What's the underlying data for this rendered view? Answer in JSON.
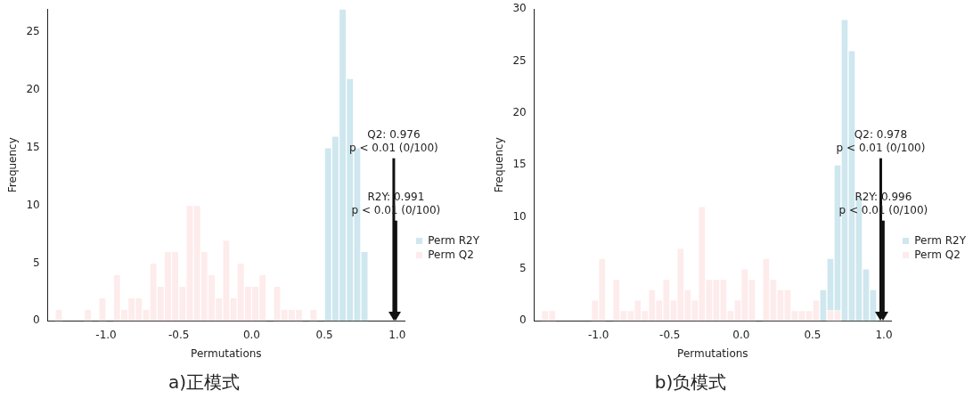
{
  "chart_data": [
    {
      "type": "histogram",
      "title": "a)正模式",
      "xlabel": "Permutations",
      "ylabel": "Frequency",
      "bins": [
        -1.35,
        -1.3,
        -1.25,
        -1.2,
        -1.15,
        -1.1,
        -1.05,
        -1.0,
        -0.95,
        -0.9,
        -0.85,
        -0.8,
        -0.75,
        -0.7,
        -0.65,
        -0.6,
        -0.55,
        -0.5,
        -0.45,
        -0.4,
        -0.35,
        -0.3,
        -0.25,
        -0.2,
        -0.15,
        -0.1,
        -0.05,
        0.0,
        0.05,
        0.1,
        0.15,
        0.2,
        0.25,
        0.3,
        0.35,
        0.4,
        0.45,
        0.5,
        0.55,
        0.6,
        0.65,
        0.7,
        0.75,
        0.8
      ],
      "series": [
        {
          "name": "Perm R2Y",
          "color": "#cfe7ee",
          "values": [
            0,
            0,
            0,
            0,
            0,
            0,
            0,
            0,
            0,
            0,
            0,
            0,
            0,
            0,
            0,
            0,
            0,
            0,
            0,
            0,
            0,
            0,
            0,
            0,
            0,
            0,
            0,
            0,
            0,
            0,
            0,
            0,
            0,
            0,
            0,
            0,
            0,
            15,
            16,
            27,
            21,
            15,
            6
          ]
        },
        {
          "name": "Perm Q2",
          "color": "#fdeceb",
          "values": [
            1,
            0,
            0,
            0,
            1,
            0,
            2,
            0,
            4,
            1,
            2,
            2,
            1,
            5,
            3,
            6,
            6,
            3,
            10,
            10,
            6,
            4,
            2,
            7,
            2,
            5,
            3,
            3,
            4,
            0,
            3,
            1,
            1,
            1,
            0,
            1,
            0,
            0,
            0,
            0,
            0,
            0,
            0
          ]
        }
      ],
      "xlim": [
        -1.4,
        1.05
      ],
      "xticks": [
        {
          "value": -1,
          "label": "-1.0"
        },
        {
          "value": -0.5,
          "label": "-0.5"
        },
        {
          "value": 0,
          "label": "0.0"
        },
        {
          "value": 0.5,
          "label": "0.5"
        },
        {
          "value": 1,
          "label": "1.0"
        }
      ],
      "ylim": [
        0,
        27
      ],
      "yticks": [
        0,
        5,
        10,
        15,
        20,
        25
      ],
      "legend": "right",
      "ref_lines": [
        {
          "axis": "x",
          "value": 0.976,
          "label": "Q2: 0.976\np < 0.01 (0/100)"
        },
        {
          "axis": "x",
          "value": 0.991,
          "label": "R2Y: 0.991\np < 0.01 (0/100)"
        }
      ]
    },
    {
      "type": "histogram",
      "title": "b)负模式",
      "xlabel": "Permutations",
      "ylabel": "Frequency",
      "bins": [
        -1.4,
        -1.35,
        -1.3,
        -1.25,
        -1.2,
        -1.15,
        -1.1,
        -1.05,
        -1.0,
        -0.95,
        -0.9,
        -0.85,
        -0.8,
        -0.75,
        -0.7,
        -0.65,
        -0.6,
        -0.55,
        -0.5,
        -0.45,
        -0.4,
        -0.35,
        -0.3,
        -0.25,
        -0.2,
        -0.15,
        -0.1,
        -0.05,
        0.0,
        0.05,
        0.1,
        0.15,
        0.2,
        0.25,
        0.3,
        0.35,
        0.4,
        0.45,
        0.5,
        0.55,
        0.6,
        0.65,
        0.7,
        0.75,
        0.8,
        0.85,
        0.9,
        0.95
      ],
      "series": [
        {
          "name": "Perm R2Y",
          "color": "#cfe7ee",
          "values": [
            0,
            0,
            0,
            0,
            0,
            0,
            0,
            0,
            0,
            0,
            0,
            0,
            0,
            0,
            0,
            0,
            0,
            0,
            0,
            0,
            0,
            0,
            0,
            0,
            0,
            0,
            0,
            0,
            0,
            0,
            0,
            0,
            0,
            0,
            0,
            0,
            0,
            0,
            0,
            3,
            6,
            15,
            29,
            26,
            12,
            5,
            3
          ]
        },
        {
          "name": "Perm Q2",
          "color": "#fdeceb",
          "values": [
            1,
            1,
            0,
            0,
            0,
            0,
            0,
            2,
            6,
            0,
            4,
            1,
            1,
            2,
            1,
            3,
            2,
            4,
            2,
            7,
            3,
            2,
            11,
            4,
            4,
            4,
            1,
            2,
            5,
            4,
            0,
            6,
            4,
            3,
            3,
            1,
            1,
            1,
            2,
            0,
            1,
            1,
            0,
            0,
            0,
            0,
            0
          ]
        }
      ],
      "xlim": [
        -1.45,
        1.05
      ],
      "xticks": [
        {
          "value": -1,
          "label": "-1.0"
        },
        {
          "value": -0.5,
          "label": "-0.5"
        },
        {
          "value": 0,
          "label": "0.0"
        },
        {
          "value": 0.5,
          "label": "0.5"
        },
        {
          "value": 1,
          "label": "1.0"
        }
      ],
      "ylim": [
        0,
        30
      ],
      "yticks": [
        0,
        5,
        10,
        15,
        20,
        25,
        30
      ],
      "legend": "right",
      "ref_lines": [
        {
          "axis": "x",
          "value": 0.978,
          "label": "Q2: 0.978\np < 0.01 (0/100)"
        },
        {
          "axis": "x",
          "value": 0.996,
          "label": "R2Y: 0.996\np < 0.01 (0/100)"
        }
      ]
    }
  ]
}
